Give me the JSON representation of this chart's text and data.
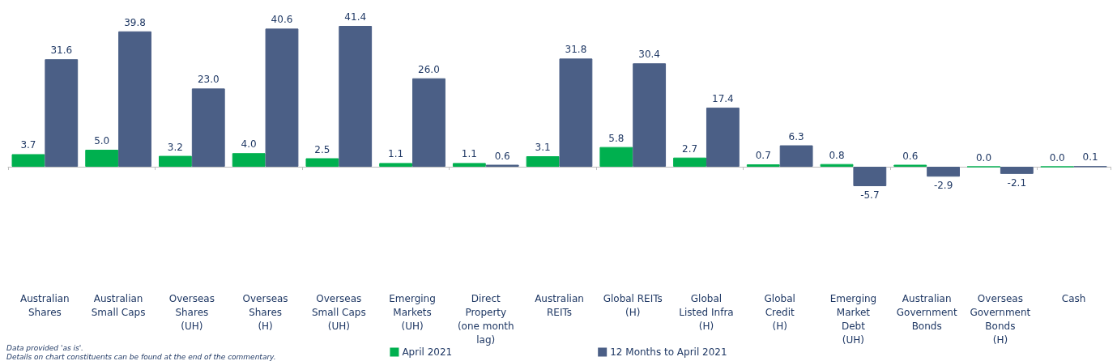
{
  "chart_data": {
    "type": "bar",
    "categories": [
      "Australian\nShares",
      "Australian\nSmall Caps",
      "Overseas\nShares\n(UH)",
      "Overseas\nShares\n(H)",
      "Overseas\nSmall Caps\n(UH)",
      "Emerging\nMarkets\n(UH)",
      "Direct\nProperty\n(one month\nlag)",
      "Australian\nREITs",
      "Global REITs\n(H)",
      "Global\nListed Infra\n(H)",
      "Global\nCredit\n(H)",
      "Emerging\nMarket\nDebt\n(UH)",
      "Australian\nGovernment\nBonds",
      "Overseas\nGovernment\nBonds\n(H)",
      "Cash"
    ],
    "series": [
      {
        "name": "April 2021",
        "color": "#00b04f",
        "values": [
          3.7,
          5.0,
          3.2,
          4.0,
          2.5,
          1.1,
          1.1,
          3.1,
          5.8,
          2.7,
          0.7,
          0.8,
          0.6,
          0.0,
          0.0
        ],
        "value_labels": [
          "3.7",
          "5.0",
          "3.2",
          "4.0",
          "2.5",
          "1.1",
          "1.1",
          "3.1",
          "5.8",
          "2.7",
          "0.7",
          "0.8",
          "0.6",
          "0.0",
          "0.0"
        ]
      },
      {
        "name": "12 Months to April 2021",
        "color": "#4b5f86",
        "values": [
          31.6,
          39.8,
          23.0,
          40.6,
          41.4,
          26.0,
          0.6,
          31.8,
          30.4,
          17.4,
          6.3,
          -5.7,
          -2.9,
          -2.1,
          0.1
        ],
        "value_labels": [
          "31.6",
          "39.8",
          "23.0",
          "40.6",
          "41.4",
          "26.0",
          "0.6",
          "31.8",
          "30.4",
          "17.4",
          "6.3",
          "-5.7",
          "-2.9",
          "-2.1",
          "0.1"
        ]
      }
    ],
    "legend": "bottom",
    "grid": false,
    "annotations": [
      "Data provided 'as is'.",
      "Details on chart constituents can be found at the end of the commentary."
    ]
  }
}
